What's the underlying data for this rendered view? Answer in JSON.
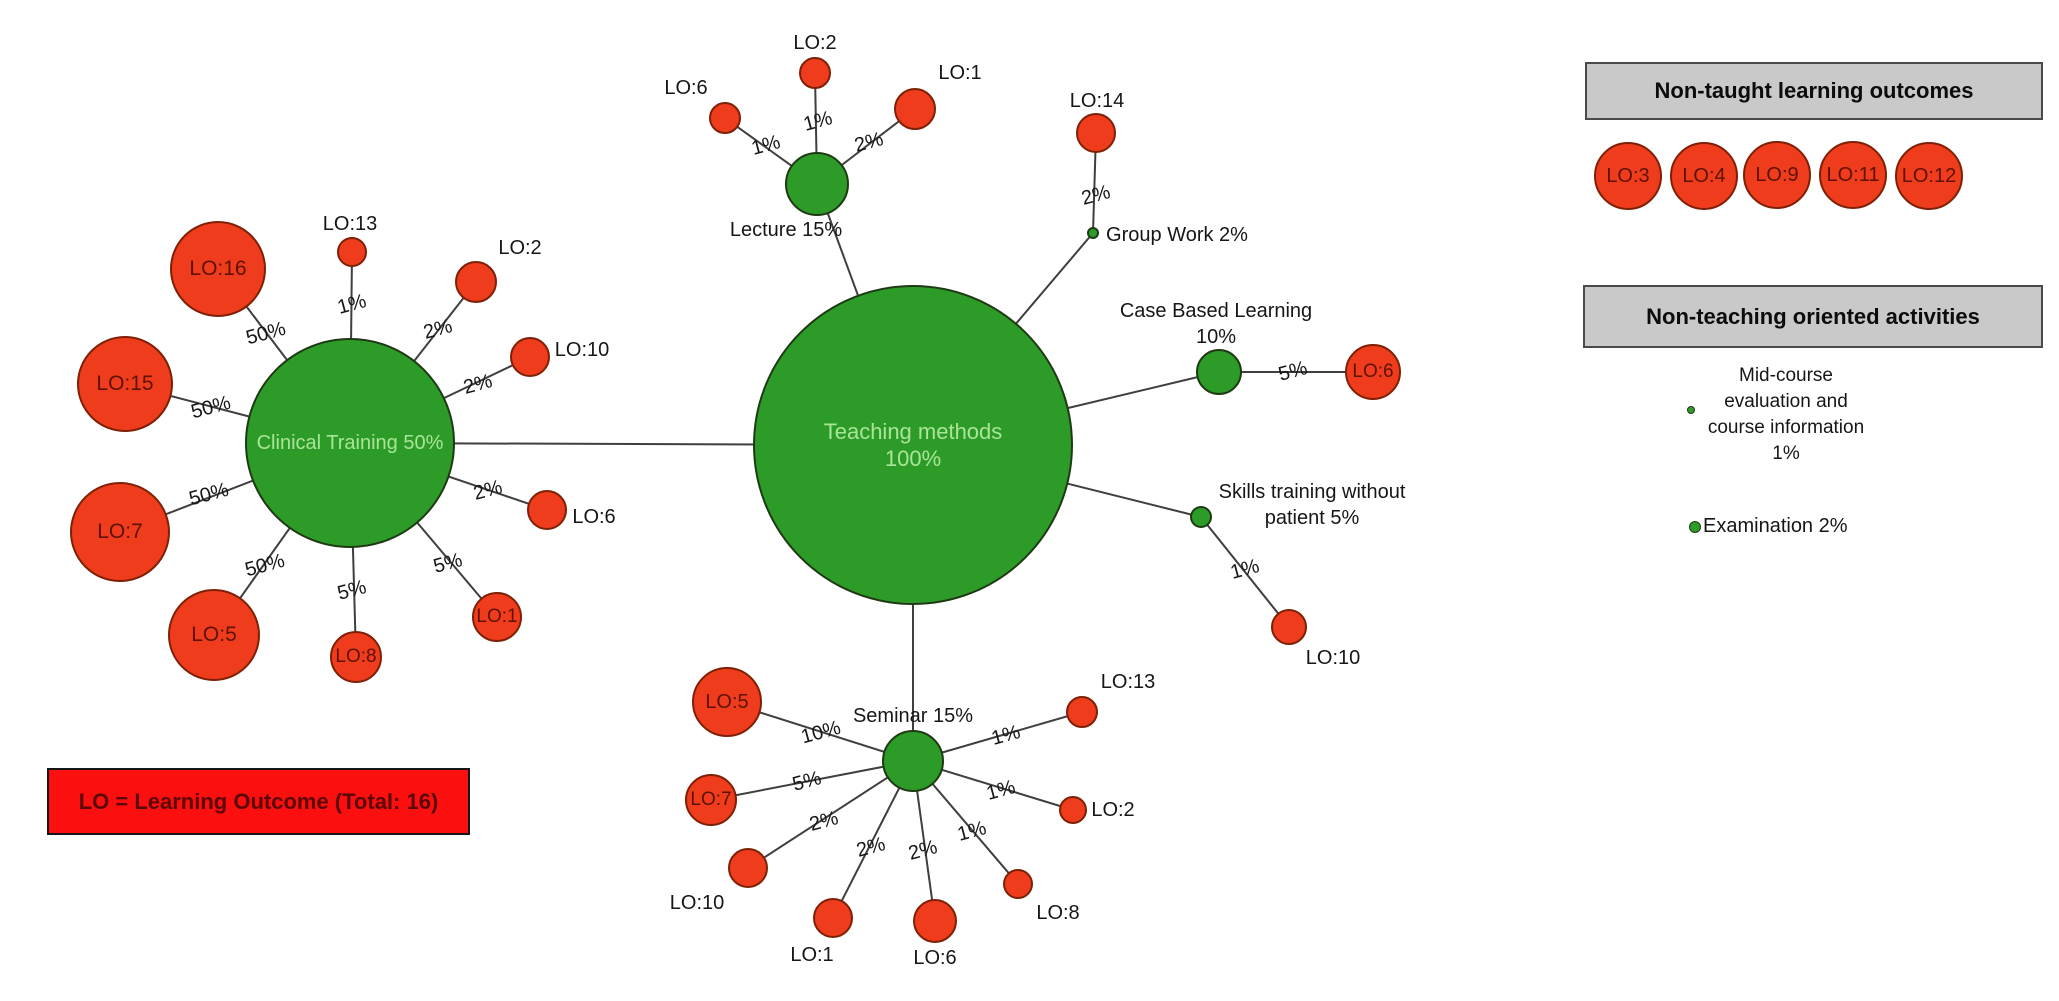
{
  "colors": {
    "background": "#ffffff",
    "method_fill": "#2d9b28",
    "method_stroke": "#1e3a14",
    "method_text": "#a9e597",
    "outcome_fill": "#ee3c1c",
    "outcome_stroke": "#7e2005",
    "outcome_text": "#5f1202",
    "edge": "#3f3f3f",
    "label_text": "#161616",
    "panel_bg": "#c9c9c9",
    "panel_border": "#4a4a4a",
    "legend_bg": "#fb0f0f",
    "legend_border": "#161616",
    "legend_text": "#5c0606"
  },
  "legend": {
    "text": "LO = Learning Outcome (Total: 16)"
  },
  "panels": {
    "non_taught": {
      "title": "Non-taught learning outcomes",
      "outcomes": [
        "LO:3",
        "LO:4",
        "LO:9",
        "LO:11",
        "LO:12"
      ]
    },
    "non_teaching": {
      "title": "Non-teaching oriented activities",
      "items": [
        {
          "name": "mid-course-evaluation",
          "lines": [
            "Mid-course",
            "evaluation and",
            "course information",
            "1%"
          ]
        },
        {
          "name": "examination",
          "lines": [
            "Examination 2%"
          ]
        }
      ]
    }
  },
  "graph": {
    "nodes": [
      {
        "id": "teaching",
        "type": "method",
        "lines": [
          "Teaching methods",
          "100%"
        ]
      },
      {
        "id": "clinical",
        "type": "method",
        "lines": [
          "Clinical Training 50%"
        ]
      },
      {
        "id": "lecture",
        "type": "method",
        "lines": [
          "Lecture 15%"
        ]
      },
      {
        "id": "groupwork",
        "type": "method",
        "lines": [
          "Group Work 2%"
        ]
      },
      {
        "id": "cbl",
        "type": "method",
        "lines": [
          "Case Based Learning",
          "10%"
        ]
      },
      {
        "id": "skills",
        "type": "method",
        "lines": [
          "Skills training without",
          "patient 5%"
        ]
      },
      {
        "id": "seminar",
        "type": "method",
        "lines": [
          "Seminar 15%"
        ]
      },
      {
        "id": "lo6_lec",
        "type": "outcome",
        "label": "LO:6"
      },
      {
        "id": "lo2_lec",
        "type": "outcome",
        "label": "LO:2"
      },
      {
        "id": "lo1_lec",
        "type": "outcome",
        "label": "LO:1"
      },
      {
        "id": "lo14",
        "type": "outcome",
        "label": "LO:14"
      },
      {
        "id": "lo6_cbl",
        "type": "outcome",
        "label": "LO:6"
      },
      {
        "id": "lo10_sk",
        "type": "outcome",
        "label": "LO:10"
      },
      {
        "id": "lo16",
        "type": "outcome",
        "label": "LO:16"
      },
      {
        "id": "lo13_cl",
        "type": "outcome",
        "label": "LO:13"
      },
      {
        "id": "lo2_cl",
        "type": "outcome",
        "label": "LO:2"
      },
      {
        "id": "lo10_cl",
        "type": "outcome",
        "label": "LO:10"
      },
      {
        "id": "lo15",
        "type": "outcome",
        "label": "LO:15"
      },
      {
        "id": "lo7_cl",
        "type": "outcome",
        "label": "LO:7"
      },
      {
        "id": "lo6_cl",
        "type": "outcome",
        "label": "LO:6"
      },
      {
        "id": "lo5_cl",
        "type": "outcome",
        "label": "LO:5"
      },
      {
        "id": "lo8_cl",
        "type": "outcome",
        "label": "LO:8"
      },
      {
        "id": "lo1_cl",
        "type": "outcome",
        "label": "LO:1"
      },
      {
        "id": "lo5_sem",
        "type": "outcome",
        "label": "LO:5"
      },
      {
        "id": "lo7_sem",
        "type": "outcome",
        "label": "LO:7"
      },
      {
        "id": "lo10_sem",
        "type": "outcome",
        "label": "LO:10"
      },
      {
        "id": "lo1_sem",
        "type": "outcome",
        "label": "LO:1"
      },
      {
        "id": "lo6_sem",
        "type": "outcome",
        "label": "LO:6"
      },
      {
        "id": "lo8_sem",
        "type": "outcome",
        "label": "LO:8"
      },
      {
        "id": "lo2_sem",
        "type": "outcome",
        "label": "LO:2"
      },
      {
        "id": "lo13_sem",
        "type": "outcome",
        "label": "LO:13"
      }
    ],
    "edges": [
      {
        "from": "teaching",
        "to": "lecture",
        "label": ""
      },
      {
        "from": "teaching",
        "to": "groupwork",
        "label": ""
      },
      {
        "from": "teaching",
        "to": "cbl",
        "label": ""
      },
      {
        "from": "teaching",
        "to": "skills",
        "label": ""
      },
      {
        "from": "teaching",
        "to": "clinical",
        "label": ""
      },
      {
        "from": "teaching",
        "to": "seminar",
        "label": ""
      },
      {
        "from": "lecture",
        "to": "lo6_lec",
        "label": "1%"
      },
      {
        "from": "lecture",
        "to": "lo2_lec",
        "label": "1%"
      },
      {
        "from": "lecture",
        "to": "lo1_lec",
        "label": "2%"
      },
      {
        "from": "groupwork",
        "to": "lo14",
        "label": "2%"
      },
      {
        "from": "cbl",
        "to": "lo6_cbl",
        "label": "5%"
      },
      {
        "from": "skills",
        "to": "lo10_sk",
        "label": "1%"
      },
      {
        "from": "clinical",
        "to": "lo16",
        "label": "50%"
      },
      {
        "from": "clinical",
        "to": "lo13_cl",
        "label": "1%"
      },
      {
        "from": "clinical",
        "to": "lo2_cl",
        "label": "2%"
      },
      {
        "from": "clinical",
        "to": "lo10_cl",
        "label": "2%"
      },
      {
        "from": "clinical",
        "to": "lo15",
        "label": "50%"
      },
      {
        "from": "clinical",
        "to": "lo7_cl",
        "label": "50%"
      },
      {
        "from": "clinical",
        "to": "lo6_cl",
        "label": "2%"
      },
      {
        "from": "clinical",
        "to": "lo5_cl",
        "label": "50%"
      },
      {
        "from": "clinical",
        "to": "lo8_cl",
        "label": "5%"
      },
      {
        "from": "clinical",
        "to": "lo1_cl",
        "label": "5%"
      },
      {
        "from": "seminar",
        "to": "lo5_sem",
        "label": "10%"
      },
      {
        "from": "seminar",
        "to": "lo7_sem",
        "label": "5%"
      },
      {
        "from": "seminar",
        "to": "lo10_sem",
        "label": "2%"
      },
      {
        "from": "seminar",
        "to": "lo1_sem",
        "label": "2%"
      },
      {
        "from": "seminar",
        "to": "lo6_sem",
        "label": "2%"
      },
      {
        "from": "seminar",
        "to": "lo8_sem",
        "label": "1%"
      },
      {
        "from": "seminar",
        "to": "lo2_sem",
        "label": "1%"
      },
      {
        "from": "seminar",
        "to": "lo13_sem",
        "label": "1%"
      }
    ]
  }
}
